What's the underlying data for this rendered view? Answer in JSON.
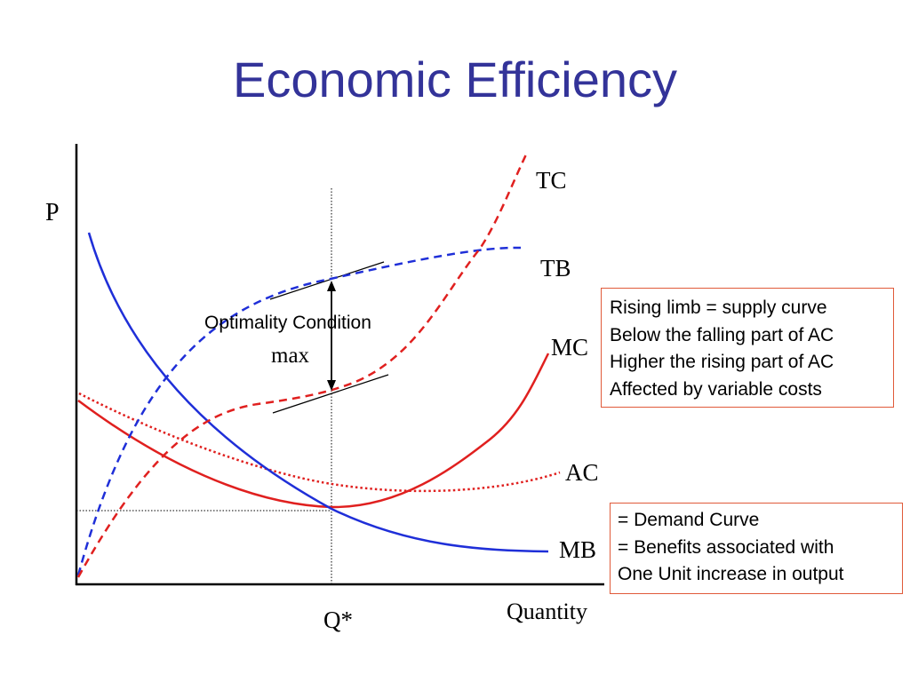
{
  "title": "Economic Efficiency",
  "axes": {
    "y_label": "P",
    "x_label": "Quantity",
    "q_star_label": "Q*"
  },
  "annotation": {
    "optimality": "Optimality Condition",
    "max": "max"
  },
  "curves": {
    "tc": {
      "label": "TC",
      "color": "#e0201f",
      "style": "dashed"
    },
    "tb": {
      "label": "TB",
      "color": "#1f2fd8",
      "style": "dashed"
    },
    "mc": {
      "label": "MC",
      "color": "#e0201f",
      "style": "solid"
    },
    "ac": {
      "label": "AC",
      "color": "#e0201f",
      "style": "dotted"
    },
    "mb": {
      "label": "MB",
      "color": "#1f2fd8",
      "style": "solid"
    }
  },
  "notes": {
    "supply": [
      "Rising limb = supply curve",
      "Below the falling part of AC",
      "Higher the rising part of AC",
      "Affected by variable costs"
    ],
    "demand": [
      "= Demand Curve",
      "= Benefits associated with",
      "One Unit increase in output"
    ]
  },
  "colors": {
    "title": "#333399",
    "red": "#e0201f",
    "blue": "#1f2fd8",
    "box_border": "#e05a3a"
  }
}
